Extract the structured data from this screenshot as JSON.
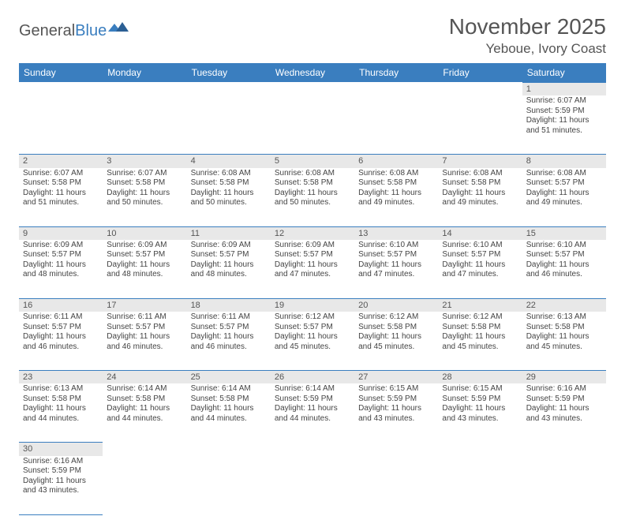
{
  "brand": {
    "part1": "General",
    "part2": "Blue"
  },
  "title": "November 2025",
  "location": "Yeboue, Ivory Coast",
  "weekdays": [
    "Sunday",
    "Monday",
    "Tuesday",
    "Wednesday",
    "Thursday",
    "Friday",
    "Saturday"
  ],
  "colors": {
    "header_bg": "#3a7ebf",
    "header_text": "#ffffff",
    "daynum_bg": "#e8e8e8",
    "border": "#3a7ebf",
    "title_color": "#555555",
    "text_color": "#444444"
  },
  "weeks": [
    [
      null,
      null,
      null,
      null,
      null,
      null,
      {
        "n": "1",
        "sunrise": "6:07 AM",
        "sunset": "5:59 PM",
        "daylight": "11 hours and 51 minutes."
      }
    ],
    [
      {
        "n": "2",
        "sunrise": "6:07 AM",
        "sunset": "5:58 PM",
        "daylight": "11 hours and 51 minutes."
      },
      {
        "n": "3",
        "sunrise": "6:07 AM",
        "sunset": "5:58 PM",
        "daylight": "11 hours and 50 minutes."
      },
      {
        "n": "4",
        "sunrise": "6:08 AM",
        "sunset": "5:58 PM",
        "daylight": "11 hours and 50 minutes."
      },
      {
        "n": "5",
        "sunrise": "6:08 AM",
        "sunset": "5:58 PM",
        "daylight": "11 hours and 50 minutes."
      },
      {
        "n": "6",
        "sunrise": "6:08 AM",
        "sunset": "5:58 PM",
        "daylight": "11 hours and 49 minutes."
      },
      {
        "n": "7",
        "sunrise": "6:08 AM",
        "sunset": "5:58 PM",
        "daylight": "11 hours and 49 minutes."
      },
      {
        "n": "8",
        "sunrise": "6:08 AM",
        "sunset": "5:57 PM",
        "daylight": "11 hours and 49 minutes."
      }
    ],
    [
      {
        "n": "9",
        "sunrise": "6:09 AM",
        "sunset": "5:57 PM",
        "daylight": "11 hours and 48 minutes."
      },
      {
        "n": "10",
        "sunrise": "6:09 AM",
        "sunset": "5:57 PM",
        "daylight": "11 hours and 48 minutes."
      },
      {
        "n": "11",
        "sunrise": "6:09 AM",
        "sunset": "5:57 PM",
        "daylight": "11 hours and 48 minutes."
      },
      {
        "n": "12",
        "sunrise": "6:09 AM",
        "sunset": "5:57 PM",
        "daylight": "11 hours and 47 minutes."
      },
      {
        "n": "13",
        "sunrise": "6:10 AM",
        "sunset": "5:57 PM",
        "daylight": "11 hours and 47 minutes."
      },
      {
        "n": "14",
        "sunrise": "6:10 AM",
        "sunset": "5:57 PM",
        "daylight": "11 hours and 47 minutes."
      },
      {
        "n": "15",
        "sunrise": "6:10 AM",
        "sunset": "5:57 PM",
        "daylight": "11 hours and 46 minutes."
      }
    ],
    [
      {
        "n": "16",
        "sunrise": "6:11 AM",
        "sunset": "5:57 PM",
        "daylight": "11 hours and 46 minutes."
      },
      {
        "n": "17",
        "sunrise": "6:11 AM",
        "sunset": "5:57 PM",
        "daylight": "11 hours and 46 minutes."
      },
      {
        "n": "18",
        "sunrise": "6:11 AM",
        "sunset": "5:57 PM",
        "daylight": "11 hours and 46 minutes."
      },
      {
        "n": "19",
        "sunrise": "6:12 AM",
        "sunset": "5:57 PM",
        "daylight": "11 hours and 45 minutes."
      },
      {
        "n": "20",
        "sunrise": "6:12 AM",
        "sunset": "5:58 PM",
        "daylight": "11 hours and 45 minutes."
      },
      {
        "n": "21",
        "sunrise": "6:12 AM",
        "sunset": "5:58 PM",
        "daylight": "11 hours and 45 minutes."
      },
      {
        "n": "22",
        "sunrise": "6:13 AM",
        "sunset": "5:58 PM",
        "daylight": "11 hours and 45 minutes."
      }
    ],
    [
      {
        "n": "23",
        "sunrise": "6:13 AM",
        "sunset": "5:58 PM",
        "daylight": "11 hours and 44 minutes."
      },
      {
        "n": "24",
        "sunrise": "6:14 AM",
        "sunset": "5:58 PM",
        "daylight": "11 hours and 44 minutes."
      },
      {
        "n": "25",
        "sunrise": "6:14 AM",
        "sunset": "5:58 PM",
        "daylight": "11 hours and 44 minutes."
      },
      {
        "n": "26",
        "sunrise": "6:14 AM",
        "sunset": "5:59 PM",
        "daylight": "11 hours and 44 minutes."
      },
      {
        "n": "27",
        "sunrise": "6:15 AM",
        "sunset": "5:59 PM",
        "daylight": "11 hours and 43 minutes."
      },
      {
        "n": "28",
        "sunrise": "6:15 AM",
        "sunset": "5:59 PM",
        "daylight": "11 hours and 43 minutes."
      },
      {
        "n": "29",
        "sunrise": "6:16 AM",
        "sunset": "5:59 PM",
        "daylight": "11 hours and 43 minutes."
      }
    ],
    [
      {
        "n": "30",
        "sunrise": "6:16 AM",
        "sunset": "5:59 PM",
        "daylight": "11 hours and 43 minutes."
      },
      null,
      null,
      null,
      null,
      null,
      null
    ]
  ],
  "labels": {
    "sunrise": "Sunrise:",
    "sunset": "Sunset:",
    "daylight": "Daylight:"
  }
}
